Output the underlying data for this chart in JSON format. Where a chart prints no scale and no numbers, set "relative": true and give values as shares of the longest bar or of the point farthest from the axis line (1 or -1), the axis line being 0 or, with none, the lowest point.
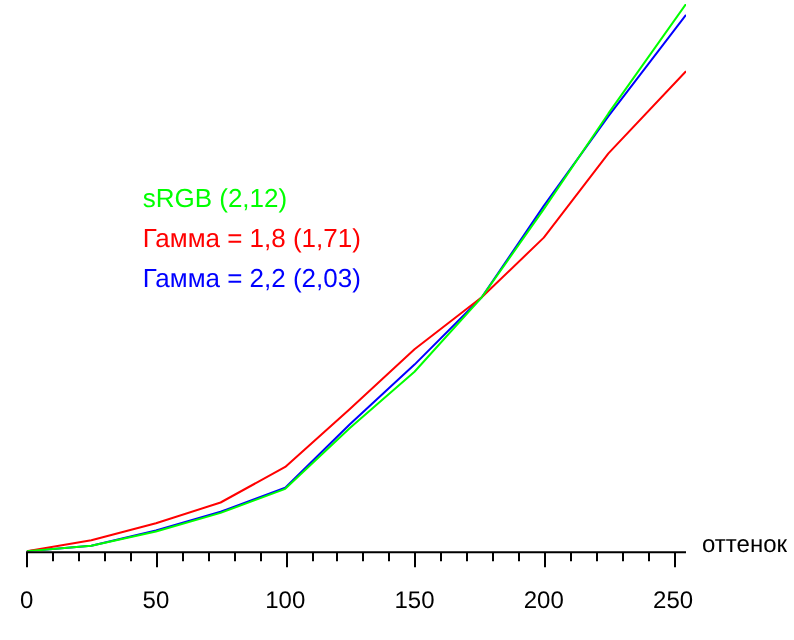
{
  "chart_data": {
    "type": "line",
    "relative": true,
    "xlabel": "оттенок",
    "legend": "left",
    "marker": "none",
    "line_style": "solid",
    "xlim": [
      0,
      255
    ],
    "xticks": [
      0,
      {
        "value": 10,
        "label": null
      },
      {
        "value": 20,
        "label": null
      },
      {
        "value": 30,
        "label": null
      },
      {
        "value": 40,
        "label": null
      },
      50,
      {
        "value": 60,
        "label": null
      },
      {
        "value": 70,
        "label": null
      },
      {
        "value": 80,
        "label": null
      },
      {
        "value": 90,
        "label": null
      },
      100,
      {
        "value": 110,
        "label": null
      },
      {
        "value": 120,
        "label": null
      },
      {
        "value": 130,
        "label": null
      },
      {
        "value": 140,
        "label": null
      },
      150,
      {
        "value": 160,
        "label": null
      },
      {
        "value": 170,
        "label": null
      },
      {
        "value": 180,
        "label": null
      },
      {
        "value": 190,
        "label": null
      },
      200,
      {
        "value": 210,
        "label": null
      },
      {
        "value": 220,
        "label": null
      },
      {
        "value": 230,
        "label": null
      },
      {
        "value": 240,
        "label": null
      },
      250
    ],
    "x": [
      0,
      25,
      50,
      75,
      100,
      125,
      150,
      176,
      200,
      225,
      255
    ],
    "series": [
      {
        "name": "sRGB (2,12)",
        "color": "#00ff00",
        "values": [
          0,
          0.01,
          0.036,
          0.07,
          0.114,
          0.225,
          0.328,
          0.464,
          0.625,
          0.8,
          1
        ]
      },
      {
        "name": "Гамма = 1,8 (1,71)",
        "color": "#ff0000",
        "values": [
          0,
          0.02,
          0.051,
          0.089,
          0.154,
          0.26,
          0.369,
          0.464,
          0.573,
          0.727,
          0.877
        ]
      },
      {
        "name": "Гамма = 2,2 (2,03)",
        "color": "#0000ff",
        "values": [
          0,
          0.01,
          0.038,
          0.072,
          0.116,
          0.232,
          0.341,
          0.464,
          0.631,
          0.795,
          0.98
        ]
      }
    ]
  }
}
